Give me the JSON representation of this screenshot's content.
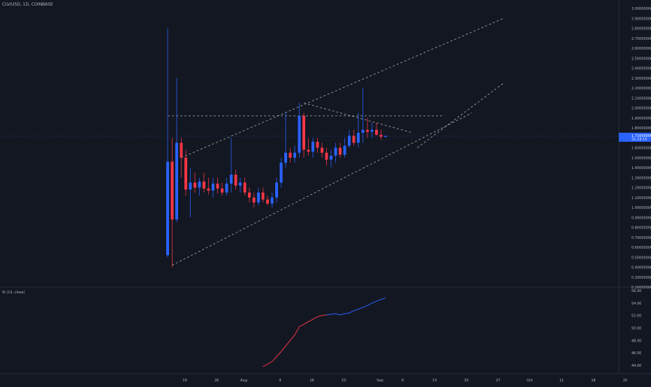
{
  "header": {
    "symbol_title": "CLV/USD, 1D, COINBASE"
  },
  "indicator": {
    "title": "SI (13, close)"
  },
  "colors": {
    "background": "#131722",
    "up": "#2962ff",
    "down": "#f23645",
    "price_tag": "#2962ff",
    "text": "#b2b5be",
    "grid": "#1e222d",
    "line_dashed": "#d1d4dc"
  },
  "price_tag": {
    "value": "1.71600000",
    "countdown": "21:19:15"
  },
  "chart_data": [
    {
      "type": "candlestick",
      "title": "CLV/USD, 1D, COINBASE",
      "ylim": [
        0.2,
        3.0
      ],
      "y_ticks": [
        0.2,
        0.3,
        0.4,
        0.5,
        0.6,
        0.7,
        0.8,
        0.9,
        1.0,
        1.1,
        1.2,
        1.3,
        1.4,
        1.5,
        1.6,
        1.7,
        1.8,
        1.9,
        2.0,
        2.1,
        2.2,
        2.3,
        2.4,
        2.5,
        2.6,
        2.7,
        2.8,
        2.9,
        3.0
      ],
      "y_tick_labels": [
        "0.20000000",
        "0.30000000",
        "0.40000000",
        "0.50000000",
        "0.60000000",
        "0.70000000",
        "0.80000000",
        "0.90000000",
        "1.00000000",
        "1.10000000",
        "1.20000000",
        "1.30000000",
        "1.40000000",
        "1.50000000",
        "1.60000000",
        "1.70000000",
        "1.80000000",
        "1.90000000",
        "2.00000000",
        "2.10000000",
        "2.20000000",
        "2.30000000",
        "2.40000000",
        "2.50000000",
        "2.60000000",
        "2.70000000",
        "2.80000000",
        "2.90000000",
        "3.00000000"
      ],
      "x_tick_labels": [
        "19",
        "26",
        "Aug",
        "9",
        "16",
        "23",
        "Sep",
        "6",
        "13",
        "20",
        "27",
        "Oct",
        "11",
        "18",
        "25"
      ],
      "x_tick_days": [
        3,
        10,
        16,
        24,
        31,
        38,
        46,
        51,
        58,
        65,
        72,
        79,
        86,
        93,
        100
      ],
      "candles": [
        {
          "day": 0,
          "o": 0.52,
          "h": 2.8,
          "l": 0.5,
          "c": 1.46
        },
        {
          "day": 1,
          "o": 1.46,
          "h": 1.7,
          "l": 0.4,
          "c": 0.88
        },
        {
          "day": 2,
          "o": 0.88,
          "h": 2.3,
          "l": 0.85,
          "c": 1.65
        },
        {
          "day": 3,
          "o": 1.65,
          "h": 1.7,
          "l": 1.3,
          "c": 1.5
        },
        {
          "day": 4,
          "o": 1.5,
          "h": 1.58,
          "l": 1.12,
          "c": 1.18
        },
        {
          "day": 5,
          "o": 1.18,
          "h": 1.4,
          "l": 0.9,
          "c": 1.25
        },
        {
          "day": 6,
          "o": 1.25,
          "h": 1.35,
          "l": 1.15,
          "c": 1.2
        },
        {
          "day": 7,
          "o": 1.2,
          "h": 1.3,
          "l": 1.12,
          "c": 1.26
        },
        {
          "day": 8,
          "o": 1.26,
          "h": 1.35,
          "l": 1.15,
          "c": 1.19
        },
        {
          "day": 9,
          "o": 1.19,
          "h": 1.3,
          "l": 1.13,
          "c": 1.17
        },
        {
          "day": 10,
          "o": 1.17,
          "h": 1.3,
          "l": 1.1,
          "c": 1.24
        },
        {
          "day": 11,
          "o": 1.24,
          "h": 1.3,
          "l": 1.14,
          "c": 1.19
        },
        {
          "day": 12,
          "o": 1.19,
          "h": 1.25,
          "l": 1.12,
          "c": 1.15
        },
        {
          "day": 13,
          "o": 1.15,
          "h": 1.3,
          "l": 1.12,
          "c": 1.24
        },
        {
          "day": 14,
          "o": 1.24,
          "h": 1.7,
          "l": 1.15,
          "c": 1.33
        },
        {
          "day": 15,
          "o": 1.33,
          "h": 1.38,
          "l": 1.18,
          "c": 1.22
        },
        {
          "day": 16,
          "o": 1.22,
          "h": 1.3,
          "l": 1.15,
          "c": 1.25
        },
        {
          "day": 17,
          "o": 1.25,
          "h": 1.3,
          "l": 1.12,
          "c": 1.15
        },
        {
          "day": 18,
          "o": 1.15,
          "h": 1.2,
          "l": 1.05,
          "c": 1.1
        },
        {
          "day": 19,
          "o": 1.1,
          "h": 1.15,
          "l": 1.0,
          "c": 1.05
        },
        {
          "day": 20,
          "o": 1.05,
          "h": 1.2,
          "l": 1.02,
          "c": 1.15
        },
        {
          "day": 21,
          "o": 1.15,
          "h": 1.2,
          "l": 1.05,
          "c": 1.08
        },
        {
          "day": 22,
          "o": 1.08,
          "h": 1.12,
          "l": 1.02,
          "c": 1.04
        },
        {
          "day": 23,
          "o": 1.04,
          "h": 1.15,
          "l": 1.0,
          "c": 1.1
        },
        {
          "day": 24,
          "o": 1.1,
          "h": 1.3,
          "l": 1.05,
          "c": 1.25
        },
        {
          "day": 25,
          "o": 1.25,
          "h": 1.5,
          "l": 1.2,
          "c": 1.45
        },
        {
          "day": 26,
          "o": 1.45,
          "h": 1.95,
          "l": 1.4,
          "c": 1.55
        },
        {
          "day": 27,
          "o": 1.55,
          "h": 1.6,
          "l": 1.45,
          "c": 1.5
        },
        {
          "day": 28,
          "o": 1.5,
          "h": 1.62,
          "l": 1.45,
          "c": 1.55
        },
        {
          "day": 29,
          "o": 1.55,
          "h": 2.05,
          "l": 1.5,
          "c": 1.92
        },
        {
          "day": 30,
          "o": 1.92,
          "h": 1.95,
          "l": 1.5,
          "c": 1.58
        },
        {
          "day": 31,
          "o": 1.58,
          "h": 1.7,
          "l": 1.52,
          "c": 1.56
        },
        {
          "day": 32,
          "o": 1.56,
          "h": 1.7,
          "l": 1.5,
          "c": 1.66
        },
        {
          "day": 33,
          "o": 1.66,
          "h": 1.7,
          "l": 1.55,
          "c": 1.6
        },
        {
          "day": 34,
          "o": 1.6,
          "h": 1.65,
          "l": 1.5,
          "c": 1.55
        },
        {
          "day": 35,
          "o": 1.55,
          "h": 1.6,
          "l": 1.42,
          "c": 1.48
        },
        {
          "day": 36,
          "o": 1.48,
          "h": 1.58,
          "l": 1.4,
          "c": 1.52
        },
        {
          "day": 37,
          "o": 1.52,
          "h": 1.65,
          "l": 1.45,
          "c": 1.6
        },
        {
          "day": 38,
          "o": 1.6,
          "h": 1.65,
          "l": 1.5,
          "c": 1.53
        },
        {
          "day": 39,
          "o": 1.53,
          "h": 1.7,
          "l": 1.5,
          "c": 1.62
        },
        {
          "day": 40,
          "o": 1.62,
          "h": 1.78,
          "l": 1.6,
          "c": 1.72
        },
        {
          "day": 41,
          "o": 1.72,
          "h": 1.78,
          "l": 1.62,
          "c": 1.65
        },
        {
          "day": 42,
          "o": 1.65,
          "h": 1.95,
          "l": 1.6,
          "c": 1.75
        },
        {
          "day": 43,
          "o": 1.75,
          "h": 2.2,
          "l": 1.65,
          "c": 1.78
        },
        {
          "day": 44,
          "o": 1.78,
          "h": 1.9,
          "l": 1.7,
          "c": 1.76
        },
        {
          "day": 45,
          "o": 1.76,
          "h": 1.85,
          "l": 1.7,
          "c": 1.78
        },
        {
          "day": 46,
          "o": 1.78,
          "h": 1.85,
          "l": 1.72,
          "c": 1.73
        },
        {
          "day": 47,
          "o": 1.73,
          "h": 1.78,
          "l": 1.68,
          "c": 1.71
        },
        {
          "day": 48,
          "o": 1.71,
          "h": 1.73,
          "l": 1.7,
          "c": 1.716
        }
      ],
      "annotations": {
        "pattern_lines": "ascending channel and triangle drawn with dashed lines"
      }
    },
    {
      "type": "line",
      "title": "SI (13, close)",
      "ylim": [
        43,
        56
      ],
      "y_ticks": [
        44,
        46,
        48,
        50,
        52,
        54,
        56
      ],
      "y_tick_labels": [
        "44.00",
        "46.00",
        "48.00",
        "50.00",
        "52.00",
        "54.00",
        "56.00"
      ],
      "series": [
        {
          "name": "SI (13, close)",
          "days": [
            21,
            22,
            23,
            24,
            25,
            26,
            27,
            28,
            29,
            30,
            31,
            32,
            33,
            34,
            35,
            36,
            37,
            38,
            39,
            40,
            41,
            42,
            43,
            44,
            45,
            46,
            47,
            48
          ],
          "values": [
            43.8,
            44.2,
            44.6,
            45.4,
            46.2,
            47.1,
            48.0,
            48.9,
            50.2,
            50.6,
            51.0,
            51.4,
            51.8,
            52.0,
            52.1,
            52.2,
            52.3,
            52.1,
            52.3,
            52.4,
            52.8,
            53.0,
            53.3,
            53.6,
            54.0,
            54.3,
            54.6,
            54.8
          ]
        }
      ],
      "segment_colors": {
        "rising_early": "#f23645",
        "late": "#2962ff"
      }
    }
  ]
}
